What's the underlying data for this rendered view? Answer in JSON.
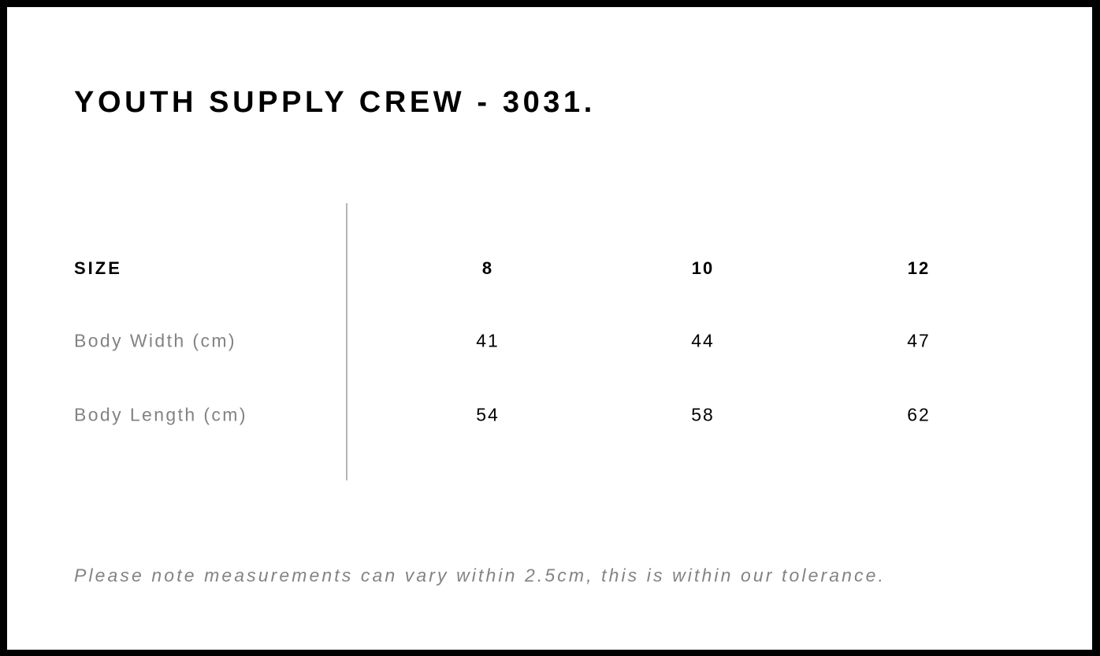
{
  "title": "YOUTH SUPPLY CREW - 3031.",
  "table": {
    "header": {
      "label": "SIZE",
      "values": [
        "8",
        "10",
        "12"
      ]
    },
    "rows": [
      {
        "label": "Body Width (cm)",
        "values": [
          "41",
          "44",
          "47"
        ]
      },
      {
        "label": "Body Length (cm)",
        "values": [
          "54",
          "58",
          "62"
        ]
      }
    ]
  },
  "note": "Please note measurements can vary within 2.5cm, this is within our tolerance."
}
